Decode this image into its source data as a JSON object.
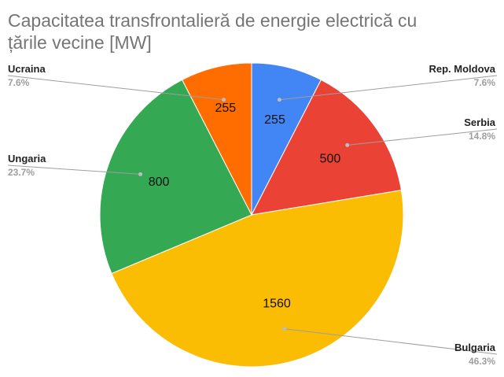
{
  "chart_data": {
    "type": "pie",
    "title_lines": [
      "Capacitatea transfrontalieră de energie electrică cu",
      "țările vecine [MW]"
    ],
    "slices": [
      {
        "label": "Rep. Moldova",
        "value": 255,
        "value_label": "255",
        "percent_label": "7.6%",
        "color": "#4285f4"
      },
      {
        "label": "Serbia",
        "value": 500,
        "value_label": "500",
        "percent_label": "14.8%",
        "color": "#ea4335"
      },
      {
        "label": "Bulgaria",
        "value": 1560,
        "value_label": "1560",
        "percent_label": "46.3%",
        "color": "#fbbc04"
      },
      {
        "label": "Ungaria",
        "value": 800,
        "value_label": "800",
        "percent_label": "23.7%",
        "color": "#34a853"
      },
      {
        "label": "Ucraina",
        "value": 255,
        "value_label": "255",
        "percent_label": "7.6%",
        "color": "#ff6d01"
      }
    ],
    "start_angle": "12 o'clock, clockwise",
    "legend": "labels with leader lines on the left and right sides"
  }
}
